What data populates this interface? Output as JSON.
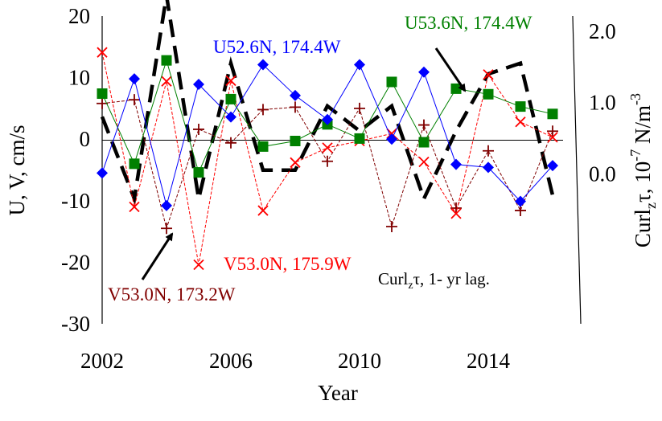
{
  "chart_data": {
    "type": "line",
    "xlabel": "Year",
    "ylabel": "U, V, cm/s",
    "ylabel2_parts": [
      "Curl",
      "z",
      "τ, 10",
      "-7",
      " N/m",
      "-3"
    ],
    "xticks": [
      2002,
      2006,
      2010,
      2014
    ],
    "yticks": [
      20,
      10,
      0,
      -10,
      -20,
      -30
    ],
    "y2ticks": [
      "2.0",
      "1.0",
      "0.0"
    ],
    "xlim": [
      2002,
      2016
    ],
    "ylim": [
      -30,
      20
    ],
    "ylim2": [
      -1.0,
      3.0
    ],
    "series": [
      {
        "name": "U52.6N, 174.4W",
        "axis": "left",
        "color": "#0000ff",
        "marker": "diamond",
        "x": [
          2002,
          2003,
          2004,
          2005,
          2006,
          2007,
          2008,
          2009,
          2010,
          2011,
          2012,
          2013,
          2014,
          2015,
          2016
        ],
        "values": [
          -5.5,
          9.8,
          -10.8,
          8.9,
          3.6,
          12.1,
          7.1,
          3.2,
          12.1,
          0.0,
          10.9,
          -4.1,
          -4.6,
          -10.1,
          -4.3
        ]
      },
      {
        "name": "U53.6N, 174.4W",
        "axis": "left",
        "color": "#008000",
        "marker": "square",
        "x": [
          2002,
          2003,
          2004,
          2005,
          2006,
          2007,
          2008,
          2009,
          2010,
          2011,
          2012,
          2013,
          2014,
          2015,
          2016
        ],
        "values": [
          7.4,
          -4.0,
          12.8,
          -5.4,
          6.5,
          -1.2,
          -0.3,
          2.4,
          0.1,
          9.3,
          -0.5,
          8.2,
          7.3,
          5.3,
          4.1
        ]
      },
      {
        "name": "V53.0N, 175.9W",
        "axis": "left",
        "color": "#ff0000",
        "marker": "x",
        "x": [
          2002,
          2003,
          2004,
          2005,
          2006,
          2007,
          2008,
          2009,
          2010,
          2011,
          2012,
          2013,
          2014,
          2015,
          2016
        ],
        "values": [
          14.1,
          -11.0,
          9.4,
          -20.4,
          9.5,
          -11.6,
          -3.8,
          -1.4,
          -0.3,
          0.9,
          -3.7,
          -12.1,
          10.5,
          2.8,
          0.3
        ]
      },
      {
        "name": "V53.0N, 173.2W",
        "axis": "left",
        "color": "#800000",
        "marker": "plus",
        "x": [
          2002,
          2003,
          2004,
          2005,
          2006,
          2007,
          2008,
          2009,
          2010,
          2011,
          2012,
          2013,
          2014,
          2015,
          2016
        ],
        "values": [
          5.8,
          6.4,
          -14.5,
          1.6,
          -0.6,
          4.8,
          5.2,
          -3.6,
          5.0,
          -14.2,
          2.3,
          -11.2,
          -1.9,
          -11.6,
          1.3
        ]
      },
      {
        "name": "Curlzτ, 1- yr lag.",
        "axis": "right",
        "color": "#000000",
        "marker": "none",
        "dashed": true,
        "x": [
          2002,
          2003,
          2004,
          2005,
          2006,
          2007,
          2007.5,
          2008,
          2009,
          2010,
          2011,
          2012,
          2013,
          2014,
          2015,
          2016
        ],
        "values": [
          0.8,
          -0.35,
          2.5,
          -0.35,
          1.55,
          0.05,
          0.05,
          0.05,
          0.95,
          0.6,
          0.95,
          -0.35,
          0.6,
          1.4,
          1.55,
          -0.3
        ]
      }
    ]
  },
  "labels": {
    "u526": "U52.6N, 174.4W",
    "u536": "U53.6N, 174.4W",
    "v530_1759": "V53.0N, 175.9W",
    "v530_1732": "V53.0N, 173.2W",
    "curl_main": "Curl",
    "curl_sub": "z",
    "curl_rest": "τ, 1- yr lag."
  }
}
